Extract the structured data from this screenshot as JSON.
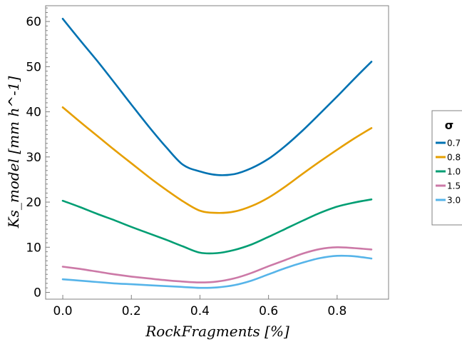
{
  "chart_data": {
    "type": "line",
    "xlabel": "RockFragments [%]",
    "ylabel": "Ks_model [mm h^-1]",
    "xlim": [
      -0.05,
      0.95
    ],
    "ylim": [
      -1.5,
      63.5
    ],
    "x_ticks": [
      "0.0",
      "0.2",
      "0.4",
      "0.6",
      "0.8"
    ],
    "y_ticks": [
      "0",
      "10",
      "20",
      "30",
      "40",
      "50",
      "60"
    ],
    "x_tick_values": [
      0.0,
      0.2,
      0.4,
      0.6,
      0.8
    ],
    "y_tick_values": [
      0,
      10,
      20,
      30,
      40,
      50,
      60
    ],
    "grid": false,
    "legend": {
      "title": "σ",
      "position": "right"
    },
    "x": [
      0.0,
      0.05,
      0.1,
      0.15,
      0.2,
      0.25,
      0.3,
      0.35,
      0.4,
      0.45,
      0.5,
      0.55,
      0.6,
      0.65,
      0.7,
      0.75,
      0.8,
      0.85,
      0.9
    ],
    "series": [
      {
        "name": "0.7",
        "color": "#0072b2",
        "values": [
          60.6,
          55.9,
          51.3,
          46.5,
          41.6,
          36.8,
          32.3,
          28.3,
          26.8,
          26.0,
          26.2,
          27.5,
          29.6,
          32.5,
          35.9,
          39.6,
          43.4,
          47.3,
          51.1
        ]
      },
      {
        "name": "0.8",
        "color": "#e69f00",
        "values": [
          41.0,
          37.8,
          34.7,
          31.6,
          28.6,
          25.6,
          22.8,
          20.2,
          18.1,
          17.6,
          17.9,
          19.1,
          21.0,
          23.5,
          26.3,
          29.0,
          31.6,
          34.1,
          36.4
        ]
      },
      {
        "name": "1.0",
        "color": "#009e73",
        "values": [
          20.3,
          18.9,
          17.4,
          16.0,
          14.5,
          13.1,
          11.7,
          10.2,
          8.8,
          8.7,
          9.4,
          10.6,
          12.3,
          14.1,
          15.9,
          17.6,
          19.0,
          19.9,
          20.6
        ]
      },
      {
        "name": "1.5",
        "color": "#cc79a7",
        "values": [
          5.7,
          5.2,
          4.6,
          4.0,
          3.5,
          3.1,
          2.7,
          2.4,
          2.2,
          2.4,
          3.1,
          4.3,
          5.8,
          7.2,
          8.6,
          9.6,
          10.0,
          9.8,
          9.5
        ]
      },
      {
        "name": "3.0",
        "color": "#56b4e9",
        "values": [
          2.9,
          2.6,
          2.3,
          2.0,
          1.8,
          1.6,
          1.4,
          1.2,
          1.0,
          1.1,
          1.6,
          2.6,
          4.0,
          5.4,
          6.6,
          7.6,
          8.1,
          8.0,
          7.5
        ]
      }
    ]
  }
}
